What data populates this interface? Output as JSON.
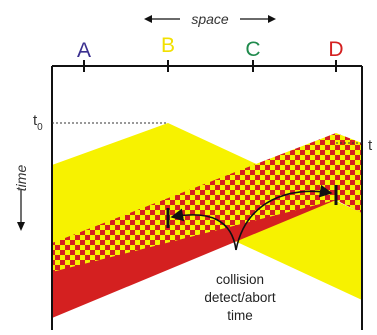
{
  "stations": [
    {
      "label": "A",
      "color": "#3a2f8f"
    },
    {
      "label": "B",
      "color": "#f2e000"
    },
    {
      "label": "C",
      "color": "#1f8a4c"
    },
    {
      "label": "D",
      "color": "#d42020"
    }
  ],
  "axes": {
    "space": "space",
    "time": "time"
  },
  "time_markers": {
    "t0": {
      "main": "t",
      "sub": "0"
    },
    "t1": {
      "main": "t"
    }
  },
  "annotation": {
    "lines": [
      "collision",
      "detect/abort",
      "time"
    ]
  },
  "colors": {
    "yellow": "#f7f200",
    "red": "#d42020",
    "frame": "#111111"
  }
}
